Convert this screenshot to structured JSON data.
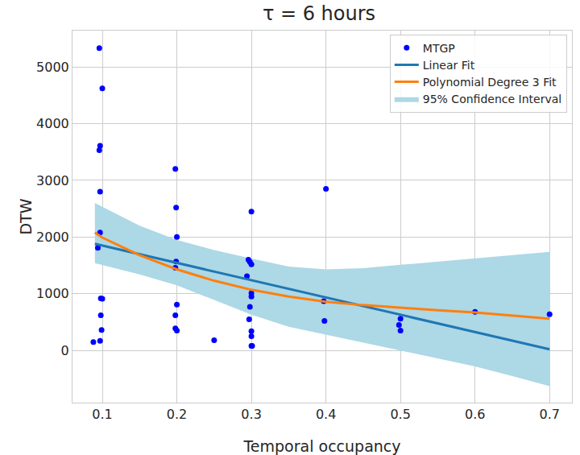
{
  "chart_data": {
    "type": "scatter",
    "title": "τ = 6 hours",
    "x_label": "Temporal occupancy",
    "y_label": "DTW",
    "xlim": [
      0.06,
      0.73
    ],
    "ylim": [
      -920,
      5640
    ],
    "xticks": [
      0.1,
      0.2,
      0.3,
      0.4,
      0.5,
      0.6,
      0.7
    ],
    "yticks": [
      0,
      1000,
      2000,
      3000,
      4000,
      5000
    ],
    "grid": true,
    "legend": "upper right",
    "series": [
      {
        "name": "MTGP",
        "type": "scatter",
        "marker": "circle",
        "color": "#0000ff",
        "x": [
          0.096,
          0.1,
          0.097,
          0.096,
          0.097,
          0.097,
          0.094,
          0.098,
          0.1,
          0.098,
          0.099,
          0.097,
          0.088,
          0.198,
          0.199,
          0.2,
          0.199,
          0.198,
          0.2,
          0.198,
          0.198,
          0.2,
          0.25,
          0.3,
          0.296,
          0.298,
          0.3,
          0.294,
          0.3,
          0.3,
          0.298,
          0.297,
          0.3,
          0.3,
          0.3,
          0.301,
          0.4,
          0.397,
          0.398,
          0.5,
          0.498,
          0.5,
          0.6,
          0.7
        ],
        "values": [
          5330,
          4620,
          3610,
          3530,
          2800,
          2080,
          1810,
          920,
          910,
          620,
          360,
          170,
          150,
          3200,
          2520,
          2000,
          1570,
          1460,
          810,
          620,
          390,
          350,
          180,
          2450,
          1600,
          1560,
          1520,
          1310,
          1010,
          950,
          770,
          550,
          340,
          250,
          80,
          80,
          2850,
          870,
          520,
          560,
          450,
          350,
          680,
          640
        ]
      },
      {
        "name": "Linear Fit",
        "type": "line",
        "line_style": "solid",
        "color": "#1f77b4",
        "x": [
          0.09,
          0.7
        ],
        "values": [
          1880,
          20
        ]
      },
      {
        "name": "Polynomial Degree 3 Fit",
        "type": "line",
        "line_style": "solid",
        "color": "#ff7f0e",
        "x": [
          0.09,
          0.1,
          0.15,
          0.2,
          0.25,
          0.3,
          0.35,
          0.4,
          0.45,
          0.5,
          0.55,
          0.6,
          0.65,
          0.7
        ],
        "values": [
          2080,
          1990,
          1680,
          1430,
          1230,
          1070,
          950,
          860,
          800,
          750,
          710,
          670,
          620,
          560
        ]
      },
      {
        "name": "95% Confidence Interval",
        "type": "band",
        "color": "#add8e6",
        "x": [
          0.09,
          0.15,
          0.2,
          0.25,
          0.3,
          0.35,
          0.4,
          0.45,
          0.5,
          0.55,
          0.6,
          0.65,
          0.7
        ],
        "upper": [
          2600,
          2200,
          1950,
          1770,
          1620,
          1480,
          1430,
          1450,
          1510,
          1570,
          1630,
          1690,
          1740
        ],
        "lower": [
          1540,
          1340,
          1150,
          890,
          630,
          420,
          280,
          140,
          0,
          -140,
          -280,
          -450,
          -630
        ]
      }
    ]
  }
}
